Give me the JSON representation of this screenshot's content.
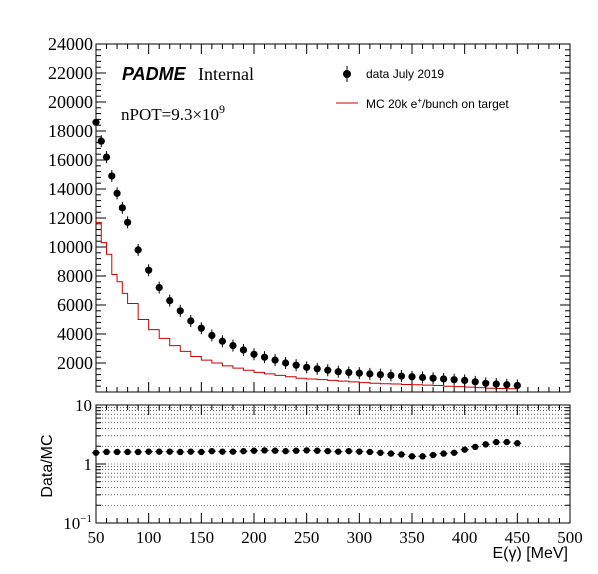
{
  "chart_data": [
    {
      "type": "scatter",
      "panel": "top",
      "xlim": [
        50,
        500
      ],
      "ylim": [
        0,
        24000
      ],
      "yticks": [
        0,
        2000,
        4000,
        6000,
        8000,
        10000,
        12000,
        14000,
        16000,
        18000,
        20000,
        22000,
        24000
      ],
      "ytick_labels": [
        "2000",
        "4000",
        "6000",
        "8000",
        "10000",
        "12000",
        "14000",
        "16000",
        "18000",
        "20000",
        "22000",
        "24000"
      ],
      "annotations": {
        "experiment": "PADME",
        "internal": "Internal",
        "npot_prefix": "nPOT=9.3×10",
        "npot_exp": "9"
      },
      "legend_placement": "top-right",
      "series": [
        {
          "name": "data July 2019",
          "style": "points",
          "color": "#000000",
          "x": [
            50,
            55,
            60,
            65,
            70,
            75,
            80,
            90,
            100,
            110,
            120,
            130,
            140,
            150,
            160,
            170,
            180,
            190,
            200,
            210,
            220,
            230,
            240,
            250,
            260,
            270,
            280,
            290,
            300,
            310,
            320,
            330,
            340,
            350,
            360,
            370,
            380,
            390,
            400,
            410,
            420,
            430,
            440,
            450
          ],
          "y": [
            18600,
            17300,
            16200,
            14900,
            13700,
            12700,
            11700,
            9800,
            8400,
            7200,
            6300,
            5600,
            4900,
            4400,
            3900,
            3500,
            3200,
            2900,
            2600,
            2400,
            2200,
            2000,
            1850,
            1700,
            1600,
            1500,
            1400,
            1350,
            1300,
            1250,
            1200,
            1150,
            1100,
            1050,
            1000,
            950,
            900,
            850,
            800,
            700,
            600,
            550,
            500,
            450
          ]
        },
        {
          "name_prefix": "MC 20k e",
          "name_sup": "+",
          "name_suffix": "/bunch on target",
          "style": "step",
          "color": "#cc0000",
          "edges": [
            50,
            55,
            60,
            65,
            70,
            75,
            80,
            90,
            100,
            110,
            120,
            130,
            140,
            150,
            160,
            170,
            180,
            190,
            200,
            210,
            220,
            230,
            240,
            250,
            260,
            270,
            280,
            290,
            300,
            310,
            320,
            330,
            340,
            350,
            360,
            370,
            380,
            390,
            400,
            410,
            420,
            430,
            440,
            450
          ],
          "values": [
            11700,
            10300,
            9500,
            8100,
            7600,
            6800,
            6100,
            5000,
            4300,
            3700,
            3200,
            2800,
            2450,
            2200,
            2000,
            1800,
            1650,
            1500,
            1350,
            1250,
            1150,
            1050,
            950,
            900,
            850,
            800,
            750,
            700,
            650,
            600,
            570,
            550,
            520,
            500,
            470,
            450,
            400,
            370,
            340,
            300,
            260,
            240,
            220
          ]
        }
      ]
    },
    {
      "type": "scatter",
      "panel": "bottom",
      "ylabel": "Data/MC",
      "xlabel": "E(γ) [MeV]",
      "xlim": [
        50,
        500
      ],
      "ylim": [
        0.1,
        10
      ],
      "yscale": "log",
      "grid": true,
      "xtick_labels": [
        "50",
        "100",
        "150",
        "200",
        "250",
        "300",
        "350",
        "400",
        "450",
        "500"
      ],
      "xticks": [
        50,
        100,
        150,
        200,
        250,
        300,
        350,
        400,
        450,
        500
      ],
      "ytick_labels": [
        {
          "base": "10",
          "exp": "−1"
        },
        {
          "base": "1",
          "exp": ""
        },
        {
          "base": "10",
          "exp": ""
        }
      ],
      "yticks": [
        0.1,
        1,
        10
      ],
      "series": [
        {
          "name": "data July 2019",
          "style": "points",
          "color": "#000000",
          "x": [
            50,
            60,
            70,
            80,
            90,
            100,
            110,
            120,
            130,
            140,
            150,
            160,
            170,
            180,
            190,
            200,
            210,
            220,
            230,
            240,
            250,
            260,
            270,
            280,
            290,
            300,
            310,
            320,
            330,
            340,
            350,
            360,
            370,
            380,
            390,
            400,
            410,
            420,
            430,
            440,
            450
          ],
          "y": [
            1.55,
            1.6,
            1.6,
            1.6,
            1.6,
            1.62,
            1.62,
            1.62,
            1.6,
            1.62,
            1.6,
            1.65,
            1.62,
            1.62,
            1.65,
            1.68,
            1.7,
            1.68,
            1.65,
            1.68,
            1.7,
            1.68,
            1.65,
            1.62,
            1.65,
            1.62,
            1.6,
            1.55,
            1.5,
            1.45,
            1.35,
            1.35,
            1.42,
            1.5,
            1.55,
            1.75,
            1.95,
            2.15,
            2.35,
            2.35,
            2.25
          ]
        }
      ]
    }
  ]
}
